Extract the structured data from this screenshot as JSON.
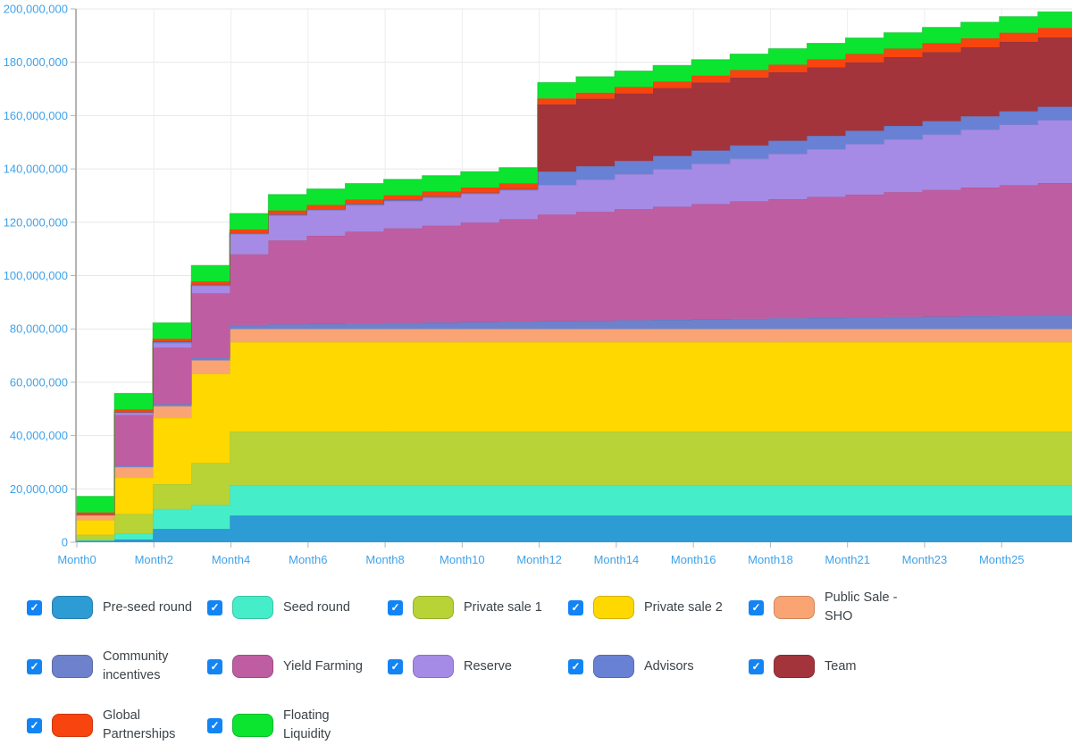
{
  "chart": {
    "background": "#ffffff",
    "grid_color": "#e7e7e7",
    "vertical_grid_color": "#ededed",
    "axis_line_color": "#9a9a9a",
    "tick_mark_color": "#b4b4b4",
    "tick_label_color": "#3fa2ea",
    "y_axis": {
      "tick_labels": [
        "0",
        "20,000,000",
        "40,000,000",
        "60,000,000",
        "80,000,000",
        "100,000,000",
        "120,000,000",
        "140,000,000",
        "160,000,000",
        "180,000,000",
        "200,000,000"
      ],
      "tick_values_millions": [
        0,
        20,
        40,
        60,
        80,
        100,
        120,
        140,
        160,
        180,
        200
      ]
    },
    "x_axis": {
      "tick_labels": [
        "Month0",
        "Month2",
        "Month4",
        "Month6",
        "Month8",
        "Month10",
        "Month12",
        "Month14",
        "Month16",
        "Month18",
        "Month21",
        "Month23",
        "Month25"
      ]
    }
  },
  "chart_data": {
    "type": "area",
    "stacked": true,
    "stepped": true,
    "title": "",
    "unit": "cumulative unlocked tokens, millions",
    "total_supply_millions": 200,
    "grid": true,
    "legend_position": "bottom",
    "ylim_millions": [
      0,
      200
    ],
    "x": [
      "Month0",
      "Month1",
      "Month2",
      "Month3",
      "Month4",
      "Month5",
      "Month6",
      "Month7",
      "Month8",
      "Month9",
      "Month10",
      "Month11",
      "Month12",
      "Month13",
      "Month14",
      "Month15",
      "Month16",
      "Month17",
      "Month18",
      "Month19",
      "Month20",
      "Month21",
      "Month22",
      "Month23",
      "Month24",
      "Month25"
    ],
    "series": [
      {
        "name": "Pre-seed round",
        "color": "#2d9bd4",
        "values": [
          0.5,
          1,
          5,
          5,
          10,
          10,
          10,
          10,
          10,
          10,
          10,
          10,
          10,
          10,
          10,
          10,
          10,
          10,
          10,
          10,
          10,
          10,
          10,
          10,
          10,
          10
        ]
      },
      {
        "name": "Seed round",
        "color": "#46edc9",
        "values": [
          0.3,
          2.3,
          7.5,
          9,
          11.5,
          11.5,
          11.5,
          11.5,
          11.5,
          11.5,
          11.5,
          11.5,
          11.5,
          11.5,
          11.5,
          11.5,
          11.5,
          11.5,
          11.5,
          11.5,
          11.5,
          11.5,
          11.5,
          11.5,
          11.5,
          11.5
        ]
      },
      {
        "name": "Private sale 1",
        "color": "#b7d335",
        "values": [
          2,
          7.3,
          9.3,
          15.7,
          20,
          20,
          20,
          20,
          20,
          20,
          20,
          20,
          20,
          20,
          20,
          20,
          20,
          20,
          20,
          20,
          20,
          20,
          20,
          20,
          20,
          20
        ]
      },
      {
        "name": "Private sale 2",
        "color": "#ffd800",
        "values": [
          5.5,
          13.6,
          24.8,
          33.5,
          33.5,
          33.5,
          33.5,
          33.5,
          33.5,
          33.5,
          33.5,
          33.5,
          33.5,
          33.5,
          33.5,
          33.5,
          33.5,
          33.5,
          33.5,
          33.5,
          33.5,
          33.5,
          33.5,
          33.5,
          33.5,
          33.5
        ]
      },
      {
        "name": "Public Sale - SHO",
        "color": "#f9a472",
        "values": [
          2,
          4,
          4.4,
          5,
          5,
          5,
          5,
          5,
          5,
          5,
          5,
          5,
          5,
          5,
          5,
          5,
          5,
          5,
          5,
          5,
          5,
          5,
          5,
          5,
          5,
          5
        ]
      },
      {
        "name": "Community incentives",
        "color": "#6e81cc",
        "values": [
          0,
          0.5,
          0.8,
          1.1,
          1.5,
          1.7,
          1.9,
          2,
          2.2,
          2.4,
          2.6,
          2.7,
          2.9,
          3.1,
          3.3,
          3.4,
          3.6,
          3.8,
          4,
          4.1,
          4.3,
          4.5,
          4.6,
          4.8,
          5,
          5.2
        ]
      },
      {
        "name": "Yield Farming",
        "color": "#bf5da2",
        "values": [
          0,
          19,
          21.2,
          24,
          26.5,
          31.5,
          33,
          34.5,
          35.5,
          36.3,
          37.3,
          38.4,
          40,
          40.8,
          41.6,
          42.4,
          43.2,
          44,
          44.7,
          45.4,
          46.1,
          46.8,
          47.5,
          48.2,
          48.9,
          49.5
        ]
      },
      {
        "name": "Reserve",
        "color": "#a58be5",
        "values": [
          0,
          0.8,
          1.7,
          2.8,
          7.5,
          9.3,
          9.6,
          9.9,
          10.2,
          10.5,
          10.7,
          10.9,
          11.1,
          12.1,
          13.1,
          14.1,
          15.1,
          16,
          16.9,
          17.9,
          18.9,
          19.8,
          20.8,
          21.7,
          22.7,
          23.6
        ]
      },
      {
        "name": "Advisors",
        "color": "#6981d4",
        "values": [
          0,
          0.3,
          0.5,
          0.5,
          0.5,
          0.5,
          0.5,
          0.5,
          0.5,
          0.5,
          0.5,
          0.5,
          5,
          5,
          5,
          5,
          5,
          5,
          5,
          5,
          5,
          5,
          5,
          5,
          5,
          5
        ]
      },
      {
        "name": "Team",
        "color": "#a3343c",
        "values": [
          0,
          0,
          0,
          0,
          0,
          0,
          0,
          0,
          0,
          0,
          0,
          0,
          25.2,
          25.3,
          25.3,
          25.4,
          25.5,
          25.5,
          25.6,
          25.7,
          25.7,
          25.8,
          25.9,
          25.9,
          26,
          26
        ]
      },
      {
        "name": "Global Partnerships",
        "color": "#f8440e",
        "values": [
          0.9,
          1,
          1.1,
          1.2,
          1.3,
          1.4,
          1.5,
          1.6,
          1.7,
          1.8,
          1.9,
          2,
          2.2,
          2.3,
          2.4,
          2.5,
          2.6,
          2.8,
          2.9,
          3,
          3.1,
          3.2,
          3.3,
          3.4,
          3.5,
          3.6
        ]
      },
      {
        "name": "Floating Liquidity",
        "color": "#0be52f",
        "values": [
          6,
          6,
          6,
          6,
          6,
          6,
          6,
          6,
          6,
          6,
          6,
          6,
          6,
          6,
          6,
          6,
          6,
          6,
          6,
          6,
          6,
          6,
          6,
          6,
          6,
          6
        ]
      }
    ]
  },
  "legend": {
    "checkbox_color": "#1384f4",
    "check_glyph": "✓",
    "text_color": "#3c4348",
    "items": [
      {
        "label": "Pre-seed round",
        "color": "#2d9bd4",
        "checked": true
      },
      {
        "label": "Seed round",
        "color": "#46edc9",
        "checked": true
      },
      {
        "label": "Private sale 1",
        "color": "#b7d335",
        "checked": true
      },
      {
        "label": "Private sale 2",
        "color": "#ffd800",
        "checked": true
      },
      {
        "label": "Public Sale - SHO",
        "color": "#f9a472",
        "checked": true
      },
      {
        "label": "Community incentives",
        "color": "#6e81cc",
        "checked": true
      },
      {
        "label": "Yield Farming",
        "color": "#bf5da2",
        "checked": true
      },
      {
        "label": "Reserve",
        "color": "#a58be5",
        "checked": true
      },
      {
        "label": "Advisors",
        "color": "#6981d4",
        "checked": true
      },
      {
        "label": "Team",
        "color": "#a3343c",
        "checked": true
      },
      {
        "label": "Global Partnerships",
        "color": "#f8440e",
        "checked": true
      },
      {
        "label": "Floating Liquidity",
        "color": "#0be52f",
        "checked": true
      }
    ]
  }
}
